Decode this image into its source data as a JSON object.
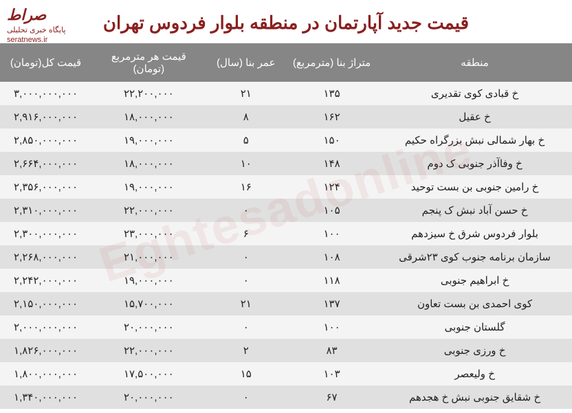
{
  "logo": {
    "brand": "صراط",
    "sub": "پایگاه خبری تحلیلی",
    "url": "seratnews.ir"
  },
  "title": "قیمت جدید آپارتمان در منطقه بلوار فردوس تهران",
  "table": {
    "columns": [
      "منطقه",
      "متراژ بنا (مترمربع)",
      "عمر بنا (سال)",
      "قیمت هر مترمربع (تومان)",
      "قیمت کل(تومان)"
    ],
    "rows": [
      {
        "region": "خ قبادی کوی تقدیری",
        "area": "۱۳۵",
        "age": "۲۱",
        "price_per_m": "۲۲,۲۰۰,۰۰۰",
        "total": "۳,۰۰۰,۰۰۰,۰۰۰"
      },
      {
        "region": "خ عقیل",
        "area": "۱۶۲",
        "age": "۸",
        "price_per_m": "۱۸,۰۰۰,۰۰۰",
        "total": "۲,۹۱۶,۰۰۰,۰۰۰"
      },
      {
        "region": "خ بهار شمالی نبش بزرگراه حکیم",
        "area": "۱۵۰",
        "age": "۵",
        "price_per_m": "۱۹,۰۰۰,۰۰۰",
        "total": "۲,۸۵۰,۰۰۰,۰۰۰"
      },
      {
        "region": "خ وفاآذر جنوبی ک دوم",
        "area": "۱۴۸",
        "age": "۱۰",
        "price_per_m": "۱۸,۰۰۰,۰۰۰",
        "total": "۲,۶۶۴,۰۰۰,۰۰۰"
      },
      {
        "region": "خ رامین جنوبی بن بست توحید",
        "area": "۱۲۴",
        "age": "۱۶",
        "price_per_m": "۱۹,۰۰۰,۰۰۰",
        "total": "۲,۳۵۶,۰۰۰,۰۰۰"
      },
      {
        "region": "خ حسن آباد نبش ک پنجم",
        "area": "۱۰۵",
        "age": "۰",
        "price_per_m": "۲۲,۰۰۰,۰۰۰",
        "total": "۲,۳۱۰,۰۰۰,۰۰۰"
      },
      {
        "region": "بلوار فردوس شرق خ سیزدهم",
        "area": "۱۰۰",
        "age": "۶",
        "price_per_m": "۲۳,۰۰۰,۰۰۰",
        "total": "۲,۳۰۰,۰۰۰,۰۰۰"
      },
      {
        "region": "سازمان برنامه جنوب کوی ۲۳شرقی",
        "area": "۱۰۸",
        "age": "۰",
        "price_per_m": "۲۱,۰۰۰,۰۰۰",
        "total": "۲,۲۶۸,۰۰۰,۰۰۰"
      },
      {
        "region": "خ ابراهیم جنوبی",
        "area": "۱۱۸",
        "age": "۰",
        "price_per_m": "۱۹,۰۰۰,۰۰۰",
        "total": "۲,۲۴۲,۰۰۰,۰۰۰"
      },
      {
        "region": "کوی احمدی بن بست تعاون",
        "area": "۱۳۷",
        "age": "۲۱",
        "price_per_m": "۱۵,۷۰۰,۰۰۰",
        "total": "۲,۱۵۰,۰۰۰,۰۰۰"
      },
      {
        "region": "گلستان جنوبی",
        "area": "۱۰۰",
        "age": "۰",
        "price_per_m": "۲۰,۰۰۰,۰۰۰",
        "total": "۲,۰۰۰,۰۰۰,۰۰۰"
      },
      {
        "region": "خ ورزی جنوبی",
        "area": "۸۳",
        "age": "۲",
        "price_per_m": "۲۲,۰۰۰,۰۰۰",
        "total": "۱,۸۲۶,۰۰۰,۰۰۰"
      },
      {
        "region": "خ ولیعصر",
        "area": "۱۰۳",
        "age": "۱۵",
        "price_per_m": "۱۷,۵۰۰,۰۰۰",
        "total": "۱,۸۰۰,۰۰۰,۰۰۰"
      },
      {
        "region": "خ شقایق جنوبی نبش خ هجدهم",
        "area": "۶۷",
        "age": "۰",
        "price_per_m": "۲۰,۰۰۰,۰۰۰",
        "total": "۱,۳۴۰,۰۰۰,۰۰۰"
      }
    ]
  },
  "styling": {
    "header_bg": "#868686",
    "header_fg": "#ffffff",
    "row_odd_bg": "#f4f4f4",
    "row_even_bg": "#e0e0e0",
    "title_color": "#8a2020",
    "text_color": "#222222",
    "title_fontsize": 26,
    "header_fontsize": 15,
    "cell_fontsize": 15,
    "col_widths_pct": [
      34,
      16,
      14,
      20,
      16
    ]
  },
  "watermark": "Eghtesadonline"
}
